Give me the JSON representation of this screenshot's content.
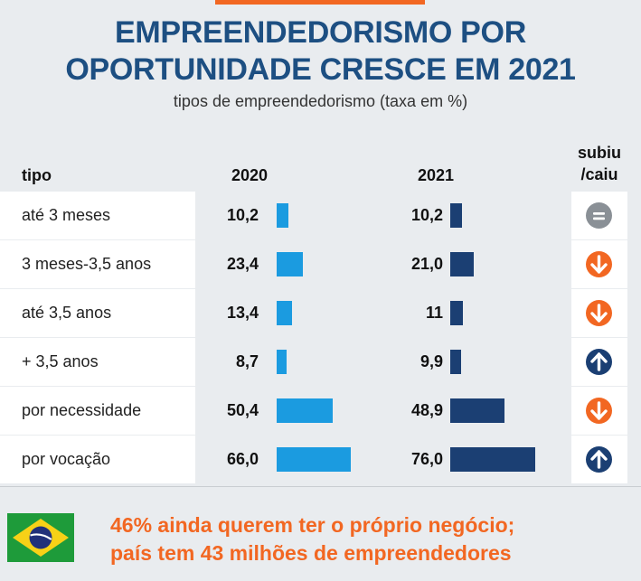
{
  "title": {
    "line1": "EMPREENDEDORISMO POR",
    "line2": "OPORTUNIDADE CRESCE EM 2021"
  },
  "subtitle": "tipos de empreendedorismo (taxa em %)",
  "headers": {
    "tipo": "tipo",
    "y2020": "2020",
    "y2021": "2021",
    "trend_line1": "subiu",
    "trend_line2": "/caiu"
  },
  "chart_data": {
    "type": "table",
    "title": "EMPREENDEDORISMO POR OPORTUNIDADE CRESCE EM 2021",
    "subtitle": "tipos de empreendedorismo (taxa em %)",
    "columns": [
      "tipo",
      "2020",
      "2021",
      "subiu/caiu"
    ],
    "rows": [
      {
        "label": "até 3 meses",
        "v2020": 10.2,
        "v2021": 10.2,
        "v2020_text": "10,2",
        "v2021_text": "10,2",
        "trend": "equal"
      },
      {
        "label": "3 meses-3,5 anos",
        "v2020": 23.4,
        "v2021": 21.0,
        "v2020_text": "23,4",
        "v2021_text": "21,0",
        "trend": "down"
      },
      {
        "label": "até 3,5 anos",
        "v2020": 13.4,
        "v2021": 11,
        "v2020_text": "13,4",
        "v2021_text": "11",
        "trend": "down"
      },
      {
        "label": "+ 3,5 anos",
        "v2020": 8.7,
        "v2021": 9.9,
        "v2020_text": "8,7",
        "v2021_text": "9,9",
        "trend": "up"
      },
      {
        "label": "por necessidade",
        "v2020": 50.4,
        "v2021": 48.9,
        "v2020_text": "50,4",
        "v2021_text": "48,9",
        "trend": "down"
      },
      {
        "label": "por vocação",
        "v2020": 66.0,
        "v2021": 76.0,
        "v2020_text": "66,0",
        "v2021_text": "76,0",
        "trend": "up"
      }
    ],
    "colors": {
      "bar2020": "#1b9be0",
      "bar2021": "#1b3f73",
      "up": "#1b3f73",
      "down": "#f26722",
      "equal": "#8a9096"
    }
  },
  "footer": {
    "line1": "46% ainda querem ter o próprio negócio;",
    "line2": "país tem 43 milhões de empreendedores",
    "flag_icon": "brazil-flag-icon"
  }
}
